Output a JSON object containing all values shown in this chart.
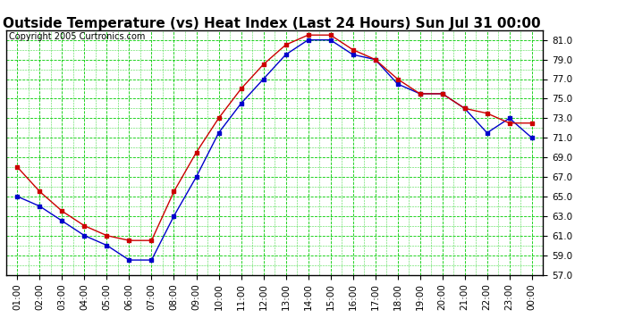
{
  "title": "Outside Temperature (vs) Heat Index (Last 24 Hours) Sun Jul 31 00:00",
  "copyright": "Copyright 2005 Curtronics.com",
  "xlabels": [
    "01:00",
    "02:00",
    "03:00",
    "04:00",
    "05:00",
    "06:00",
    "07:00",
    "08:00",
    "09:00",
    "10:00",
    "11:00",
    "12:00",
    "13:00",
    "14:00",
    "15:00",
    "16:00",
    "17:00",
    "18:00",
    "19:00",
    "20:00",
    "21:00",
    "22:00",
    "23:00",
    "00:00"
  ],
  "x_indices": [
    0,
    1,
    2,
    3,
    4,
    5,
    6,
    7,
    8,
    9,
    10,
    11,
    12,
    13,
    14,
    15,
    16,
    17,
    18,
    19,
    20,
    21,
    22,
    23
  ],
  "temp_blue": [
    65.0,
    64.0,
    62.5,
    61.0,
    60.0,
    58.5,
    58.5,
    63.0,
    67.0,
    71.5,
    74.5,
    77.0,
    79.5,
    81.0,
    81.0,
    79.5,
    79.0,
    76.5,
    75.5,
    75.5,
    74.0,
    71.5,
    73.0,
    71.0
  ],
  "heat_red": [
    68.0,
    65.5,
    63.5,
    62.0,
    61.0,
    60.5,
    60.5,
    65.5,
    69.5,
    73.0,
    76.0,
    78.5,
    80.5,
    81.5,
    81.5,
    80.0,
    79.0,
    77.0,
    75.5,
    75.5,
    74.0,
    73.5,
    72.5,
    72.5
  ],
  "ylim": [
    57.0,
    82.0
  ],
  "yticks": [
    57.0,
    59.0,
    61.0,
    63.0,
    65.0,
    67.0,
    69.0,
    71.0,
    73.0,
    75.0,
    77.0,
    79.0,
    81.0
  ],
  "blue_color": "#0000cc",
  "red_color": "#cc0000",
  "grid_color": "#00cc00",
  "bg_color": "#ffffff",
  "title_fontsize": 11,
  "tick_fontsize": 7.5,
  "copyright_fontsize": 7.0
}
